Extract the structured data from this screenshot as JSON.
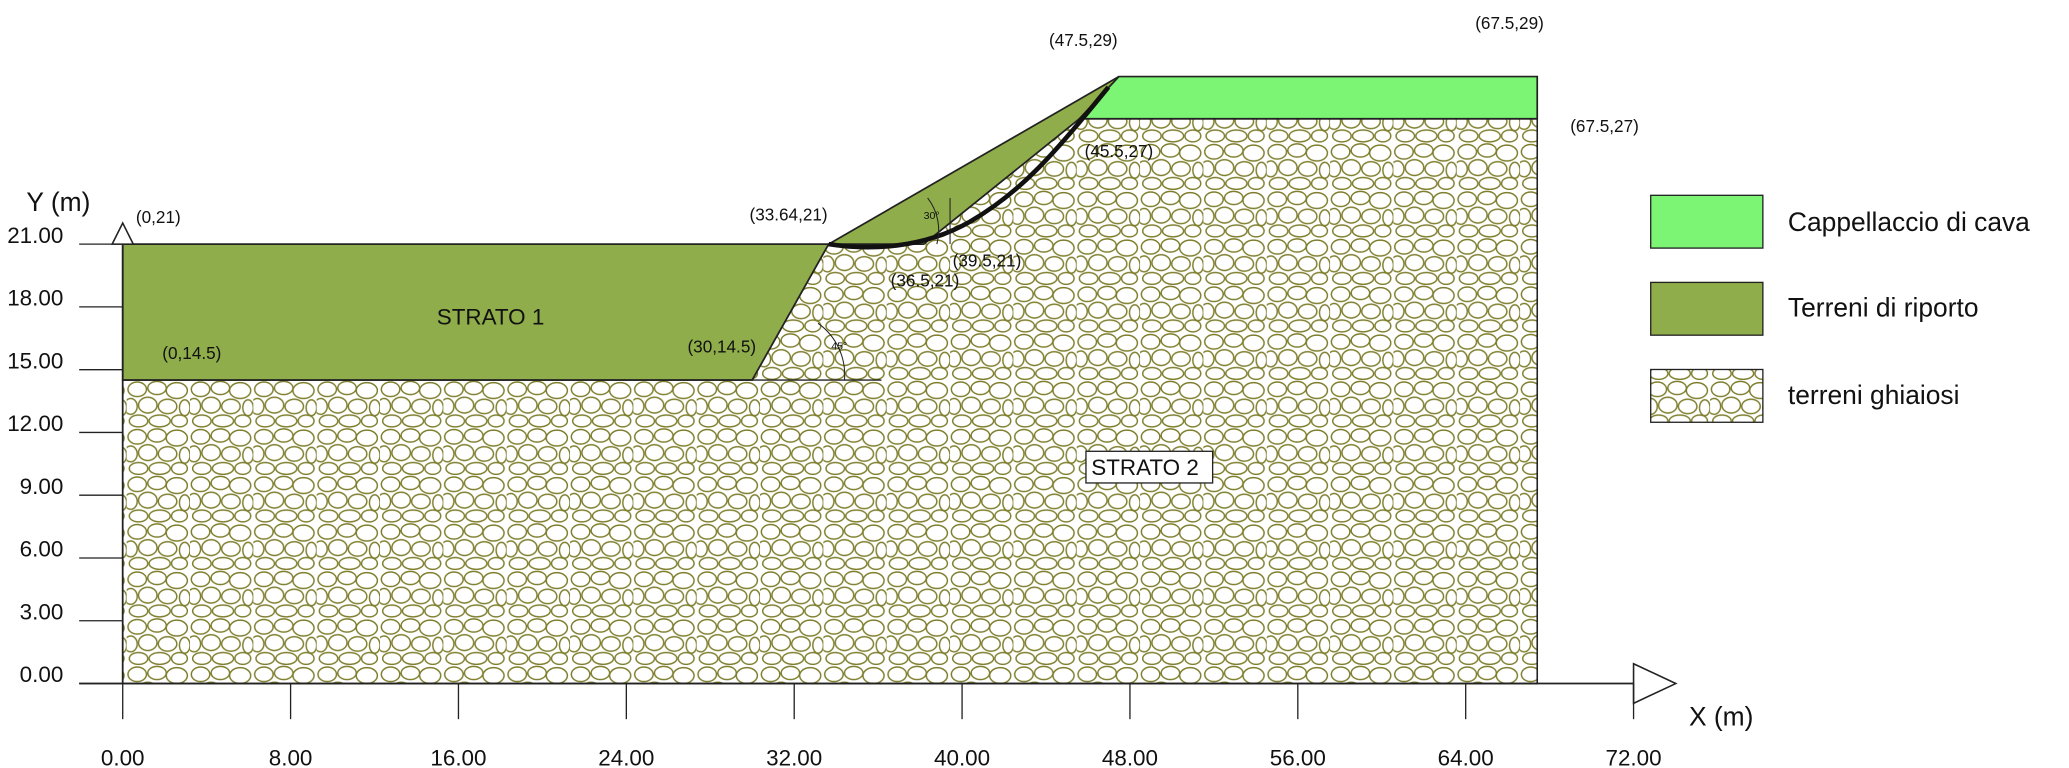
{
  "axes": {
    "x_label": "X (m)",
    "y_label": "Y (m)",
    "x_ticks": [
      "0.00",
      "8.00",
      "16.00",
      "24.00",
      "32.00",
      "40.00",
      "48.00",
      "56.00",
      "64.00",
      "72.00"
    ],
    "y_ticks": [
      "0.00",
      "3.00",
      "6.00",
      "9.00",
      "12.00",
      "15.00",
      "18.00",
      "21.00"
    ]
  },
  "points": [
    "(47.5,29)",
    "(67.5,29)",
    "(67.5,27)",
    "(45.5,27)",
    "(0,21)",
    "(33.64,21)",
    "(39.5,21)",
    "(36.5,21)",
    "(0,14.5)",
    "(30,14.5)"
  ],
  "angles": [
    "30°",
    "45°"
  ],
  "strata": [
    "STRATO 1",
    "STRATO 2"
  ],
  "legend": [
    "Cappellaccio di cava",
    "Terreni di riporto",
    "terreni ghiaiosi"
  ]
}
